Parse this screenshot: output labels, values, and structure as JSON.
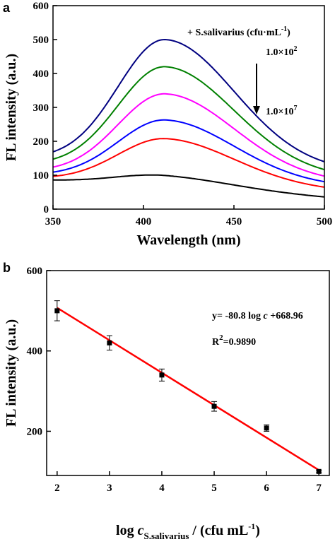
{
  "chart_data": [
    {
      "type": "line",
      "panel_label": "a",
      "xlabel": "Wavelength (nm)",
      "ylabel": "FL intensity (a.u.)",
      "xlim": [
        350,
        500
      ],
      "ylim": [
        0,
        600
      ],
      "x_ticks": [
        350,
        400,
        450,
        500
      ],
      "y_ticks": [
        0,
        100,
        200,
        300,
        400,
        500,
        600
      ],
      "annotations": {
        "legend_title": "+ S.salivarius (cfu·mL",
        "legend_title_sup": "-1",
        "legend_title_end": ")",
        "top_label": "1.0×10",
        "top_label_sup": "2",
        "bottom_label": "1.0×10",
        "bottom_label_sup": "7"
      },
      "series": [
        {
          "color": "#000080",
          "peak_x": 412,
          "peak_y": 500,
          "start_y": 148,
          "end_y": 115
        },
        {
          "color": "#008000",
          "peak_x": 412,
          "peak_y": 420,
          "start_y": 130,
          "end_y": 96
        },
        {
          "color": "#ff00ff",
          "peak_x": 412,
          "peak_y": 340,
          "start_y": 110,
          "end_y": 81
        },
        {
          "color": "#0000ff",
          "peak_x": 412,
          "peak_y": 263,
          "start_y": 99,
          "end_y": 69
        },
        {
          "color": "#ff0000",
          "peak_x": 412,
          "peak_y": 208,
          "start_y": 89,
          "end_y": 56
        },
        {
          "color": "#000000",
          "peak_x": 410,
          "peak_y": 100,
          "start_y": 84,
          "end_y": 34
        }
      ]
    },
    {
      "type": "scatter",
      "panel_label": "b",
      "ylabel": "FL intensity (a.u.)",
      "xlabel_parts": {
        "prefix": "log ",
        "var": "c",
        "sub": "S.salivarius",
        "suffix": " / (cfu mL",
        "sup": "-1",
        "end": ")"
      },
      "xlim": [
        1.8,
        7.2
      ],
      "ylim": [
        90,
        600
      ],
      "x_ticks": [
        2,
        3,
        4,
        5,
        6,
        7
      ],
      "y_ticks": [
        200,
        400,
        600
      ],
      "points": [
        {
          "x": 2,
          "y": 500,
          "err": 25
        },
        {
          "x": 3,
          "y": 420,
          "err": 18
        },
        {
          "x": 4,
          "y": 340,
          "err": 15
        },
        {
          "x": 5,
          "y": 262,
          "err": 12
        },
        {
          "x": 6,
          "y": 208,
          "err": 8
        },
        {
          "x": 7,
          "y": 100,
          "err": 3
        }
      ],
      "fit": {
        "slope": -80.8,
        "intercept": 668.96,
        "color": "#ff0000",
        "x_range": [
          2,
          7
        ]
      },
      "equation": {
        "prefix": "y= -80.8 log ",
        "var": "c",
        "suffix": " +668.96"
      },
      "r2": {
        "prefix": "R",
        "sup": "2",
        "suffix": "=0.9890"
      }
    }
  ]
}
